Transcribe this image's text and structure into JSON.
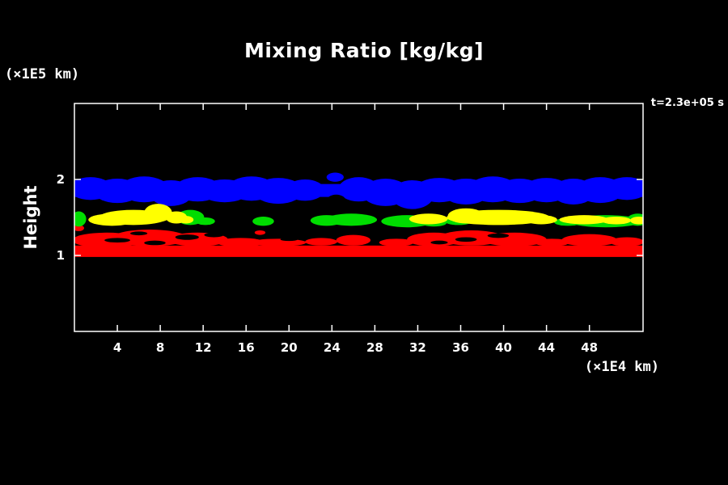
{
  "chart_data": {
    "type": "heatmap",
    "title": "Mixing Ratio [kg/kg]",
    "ylabel": "Height",
    "y_axis_units": "(×1E5 km)",
    "x_axis_units": "(×1E4 km)",
    "time_annotation": "t=2.3e+05 s",
    "xlim": [
      0,
      53
    ],
    "ylim": [
      0,
      3
    ],
    "xticks": [
      4,
      8,
      12,
      16,
      20,
      24,
      28,
      32,
      36,
      40,
      44,
      48
    ],
    "yticks": [
      1,
      2
    ],
    "background_color": "#000000",
    "frame_color": "#ffffff",
    "legend_position": "none",
    "grid": false,
    "layers": [
      {
        "name": "upper-band-blue",
        "color": "#0000ff",
        "rects": [
          [
            -1,
            54,
            1.77,
            1.94
          ]
        ],
        "blobs": [
          [
            1.5,
            1.88,
            2.0,
            0.15
          ],
          [
            4,
            1.85,
            2.2,
            0.16
          ],
          [
            6.5,
            1.87,
            2.3,
            0.17
          ],
          [
            9,
            1.82,
            2.0,
            0.17
          ],
          [
            11.5,
            1.87,
            2.2,
            0.16
          ],
          [
            14,
            1.85,
            2.3,
            0.15
          ],
          [
            16.5,
            1.88,
            2.2,
            0.16
          ],
          [
            19,
            1.85,
            2.3,
            0.17
          ],
          [
            21.5,
            1.86,
            1.8,
            0.14
          ],
          [
            26.5,
            1.87,
            1.9,
            0.16
          ],
          [
            29,
            1.83,
            2.2,
            0.18
          ],
          [
            31.5,
            1.8,
            2.0,
            0.19
          ],
          [
            34,
            1.86,
            2.3,
            0.16
          ],
          [
            36.5,
            1.84,
            2.2,
            0.17
          ],
          [
            39,
            1.87,
            2.3,
            0.17
          ],
          [
            41.5,
            1.85,
            2.2,
            0.16
          ],
          [
            44,
            1.86,
            2.2,
            0.16
          ],
          [
            46.5,
            1.84,
            2.0,
            0.17
          ],
          [
            49,
            1.86,
            2.2,
            0.17
          ],
          [
            51.5,
            1.88,
            2.0,
            0.15
          ],
          [
            24.3,
            2.03,
            0.8,
            0.06
          ]
        ],
        "holes": [
          [
            24.4,
            1.72,
            0.9,
            0.08
          ]
        ]
      },
      {
        "name": "lower-band-red",
        "color": "#ff0000",
        "rects": [
          [
            -1,
            54,
            0.98,
            1.13
          ]
        ],
        "blobs": [
          [
            3,
            1.2,
            3.2,
            0.1
          ],
          [
            7,
            1.23,
            3.5,
            0.11
          ],
          [
            11.5,
            1.21,
            2.8,
            0.09
          ],
          [
            15.5,
            1.17,
            2.2,
            0.06
          ],
          [
            19,
            1.17,
            2.6,
            0.05
          ],
          [
            23,
            1.18,
            1.5,
            0.05
          ],
          [
            26,
            1.2,
            1.6,
            0.07
          ],
          [
            30,
            1.17,
            1.6,
            0.05
          ],
          [
            33.5,
            1.21,
            2.5,
            0.09
          ],
          [
            37,
            1.23,
            3.0,
            0.1
          ],
          [
            41,
            1.21,
            3.0,
            0.09
          ],
          [
            44.5,
            1.17,
            1.6,
            0.05
          ],
          [
            48,
            1.2,
            2.6,
            0.08
          ],
          [
            51.5,
            1.18,
            1.6,
            0.06
          ],
          [
            0.4,
            1.36,
            0.5,
            0.04
          ],
          [
            17.3,
            1.3,
            0.5,
            0.03
          ]
        ],
        "holes": [
          [
            4,
            1.2,
            1.2,
            0.03
          ],
          [
            7.5,
            1.165,
            1.0,
            0.03
          ],
          [
            10.5,
            1.24,
            1.1,
            0.035
          ],
          [
            13,
            1.27,
            0.9,
            0.03
          ],
          [
            6,
            1.29,
            0.8,
            0.025
          ],
          [
            36.5,
            1.21,
            1.0,
            0.03
          ],
          [
            39.5,
            1.26,
            1.0,
            0.03
          ],
          [
            34,
            1.17,
            0.8,
            0.025
          ],
          [
            20,
            1.21,
            0.8,
            0.02
          ]
        ]
      },
      {
        "name": "mid-band-green",
        "color": "#00dd00",
        "rects": [],
        "blobs": [
          [
            0.4,
            1.48,
            0.7,
            0.1
          ],
          [
            10.8,
            1.5,
            1.3,
            0.1
          ],
          [
            12.2,
            1.45,
            0.9,
            0.05
          ],
          [
            17.6,
            1.45,
            1.0,
            0.06
          ],
          [
            23.5,
            1.46,
            1.5,
            0.07
          ],
          [
            25.8,
            1.47,
            2.4,
            0.08
          ],
          [
            31,
            1.45,
            2.4,
            0.08
          ],
          [
            33.5,
            1.43,
            1.2,
            0.05
          ],
          [
            35.8,
            1.46,
            1.4,
            0.06
          ],
          [
            46,
            1.44,
            1.3,
            0.05
          ],
          [
            49.5,
            1.45,
            3.4,
            0.08
          ],
          [
            52.5,
            1.47,
            1.0,
            0.08
          ]
        ],
        "holes": []
      },
      {
        "name": "mid-band-yellow",
        "color": "#ffff00",
        "rects": [],
        "blobs": [
          [
            3.5,
            1.47,
            2.2,
            0.08
          ],
          [
            5.5,
            1.5,
            3.2,
            0.1
          ],
          [
            7.8,
            1.56,
            1.3,
            0.12
          ],
          [
            9.5,
            1.5,
            1.0,
            0.08
          ],
          [
            10.4,
            1.47,
            0.7,
            0.05
          ],
          [
            33,
            1.48,
            1.8,
            0.07
          ],
          [
            36.5,
            1.52,
            1.7,
            0.1
          ],
          [
            39.5,
            1.5,
            4.8,
            0.1
          ],
          [
            43.5,
            1.47,
            1.5,
            0.06
          ],
          [
            47.5,
            1.47,
            2.3,
            0.06
          ],
          [
            50.5,
            1.46,
            1.4,
            0.05
          ],
          [
            52.6,
            1.46,
            0.8,
            0.05
          ]
        ],
        "holes": []
      }
    ]
  }
}
